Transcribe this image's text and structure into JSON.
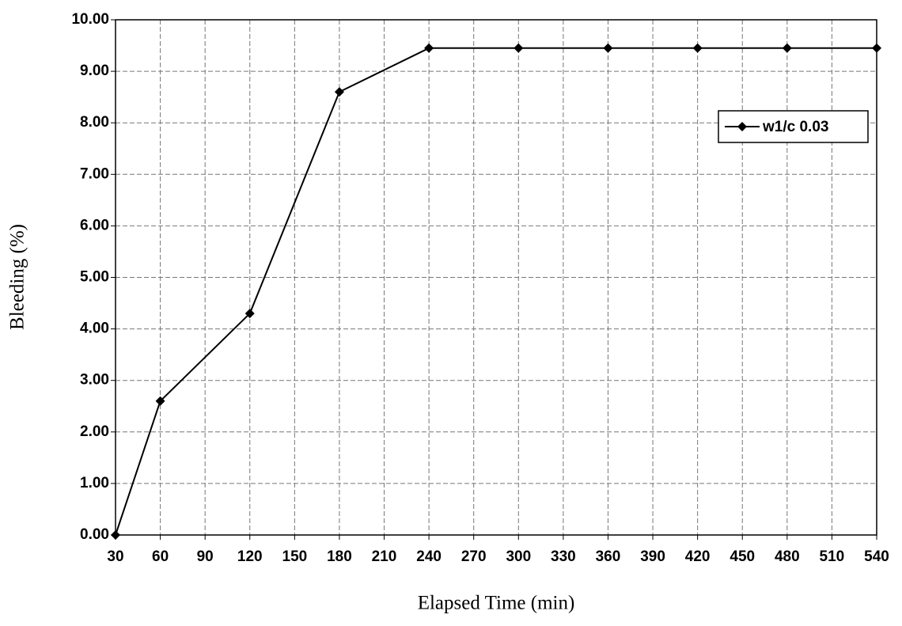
{
  "chart_data": {
    "type": "line",
    "x_label": "Elapsed Time (min)",
    "y_label": "Bleeding (%)",
    "x": [
      30,
      60,
      120,
      180,
      240,
      300,
      360,
      420,
      480,
      540
    ],
    "series": [
      {
        "name": "w1/c 0.03",
        "color": "#000000",
        "values": [
          0,
          2.6,
          4.3,
          8.6,
          9.45,
          9.45,
          9.45,
          9.45,
          9.45,
          9.45
        ]
      }
    ],
    "xlim": [
      30,
      540
    ],
    "xticks": [
      30,
      60,
      90,
      120,
      150,
      180,
      210,
      240,
      270,
      300,
      330,
      360,
      390,
      420,
      450,
      480,
      510,
      540
    ],
    "ylim": [
      0,
      10
    ],
    "yticks": [
      {
        "value": 0,
        "label": "0.00"
      },
      {
        "value": 1,
        "label": "1.00"
      },
      {
        "value": 2,
        "label": "2.00"
      },
      {
        "value": 3,
        "label": "3.00"
      },
      {
        "value": 4,
        "label": "4.00"
      },
      {
        "value": 5,
        "label": "5.00"
      },
      {
        "value": 6,
        "label": "6.00"
      },
      {
        "value": 7,
        "label": "7.00"
      },
      {
        "value": 8,
        "label": "8.00"
      },
      {
        "value": 9,
        "label": "9.00"
      },
      {
        "value": 10,
        "label": "10.00"
      }
    ],
    "grid": true,
    "legend": "upper right"
  }
}
